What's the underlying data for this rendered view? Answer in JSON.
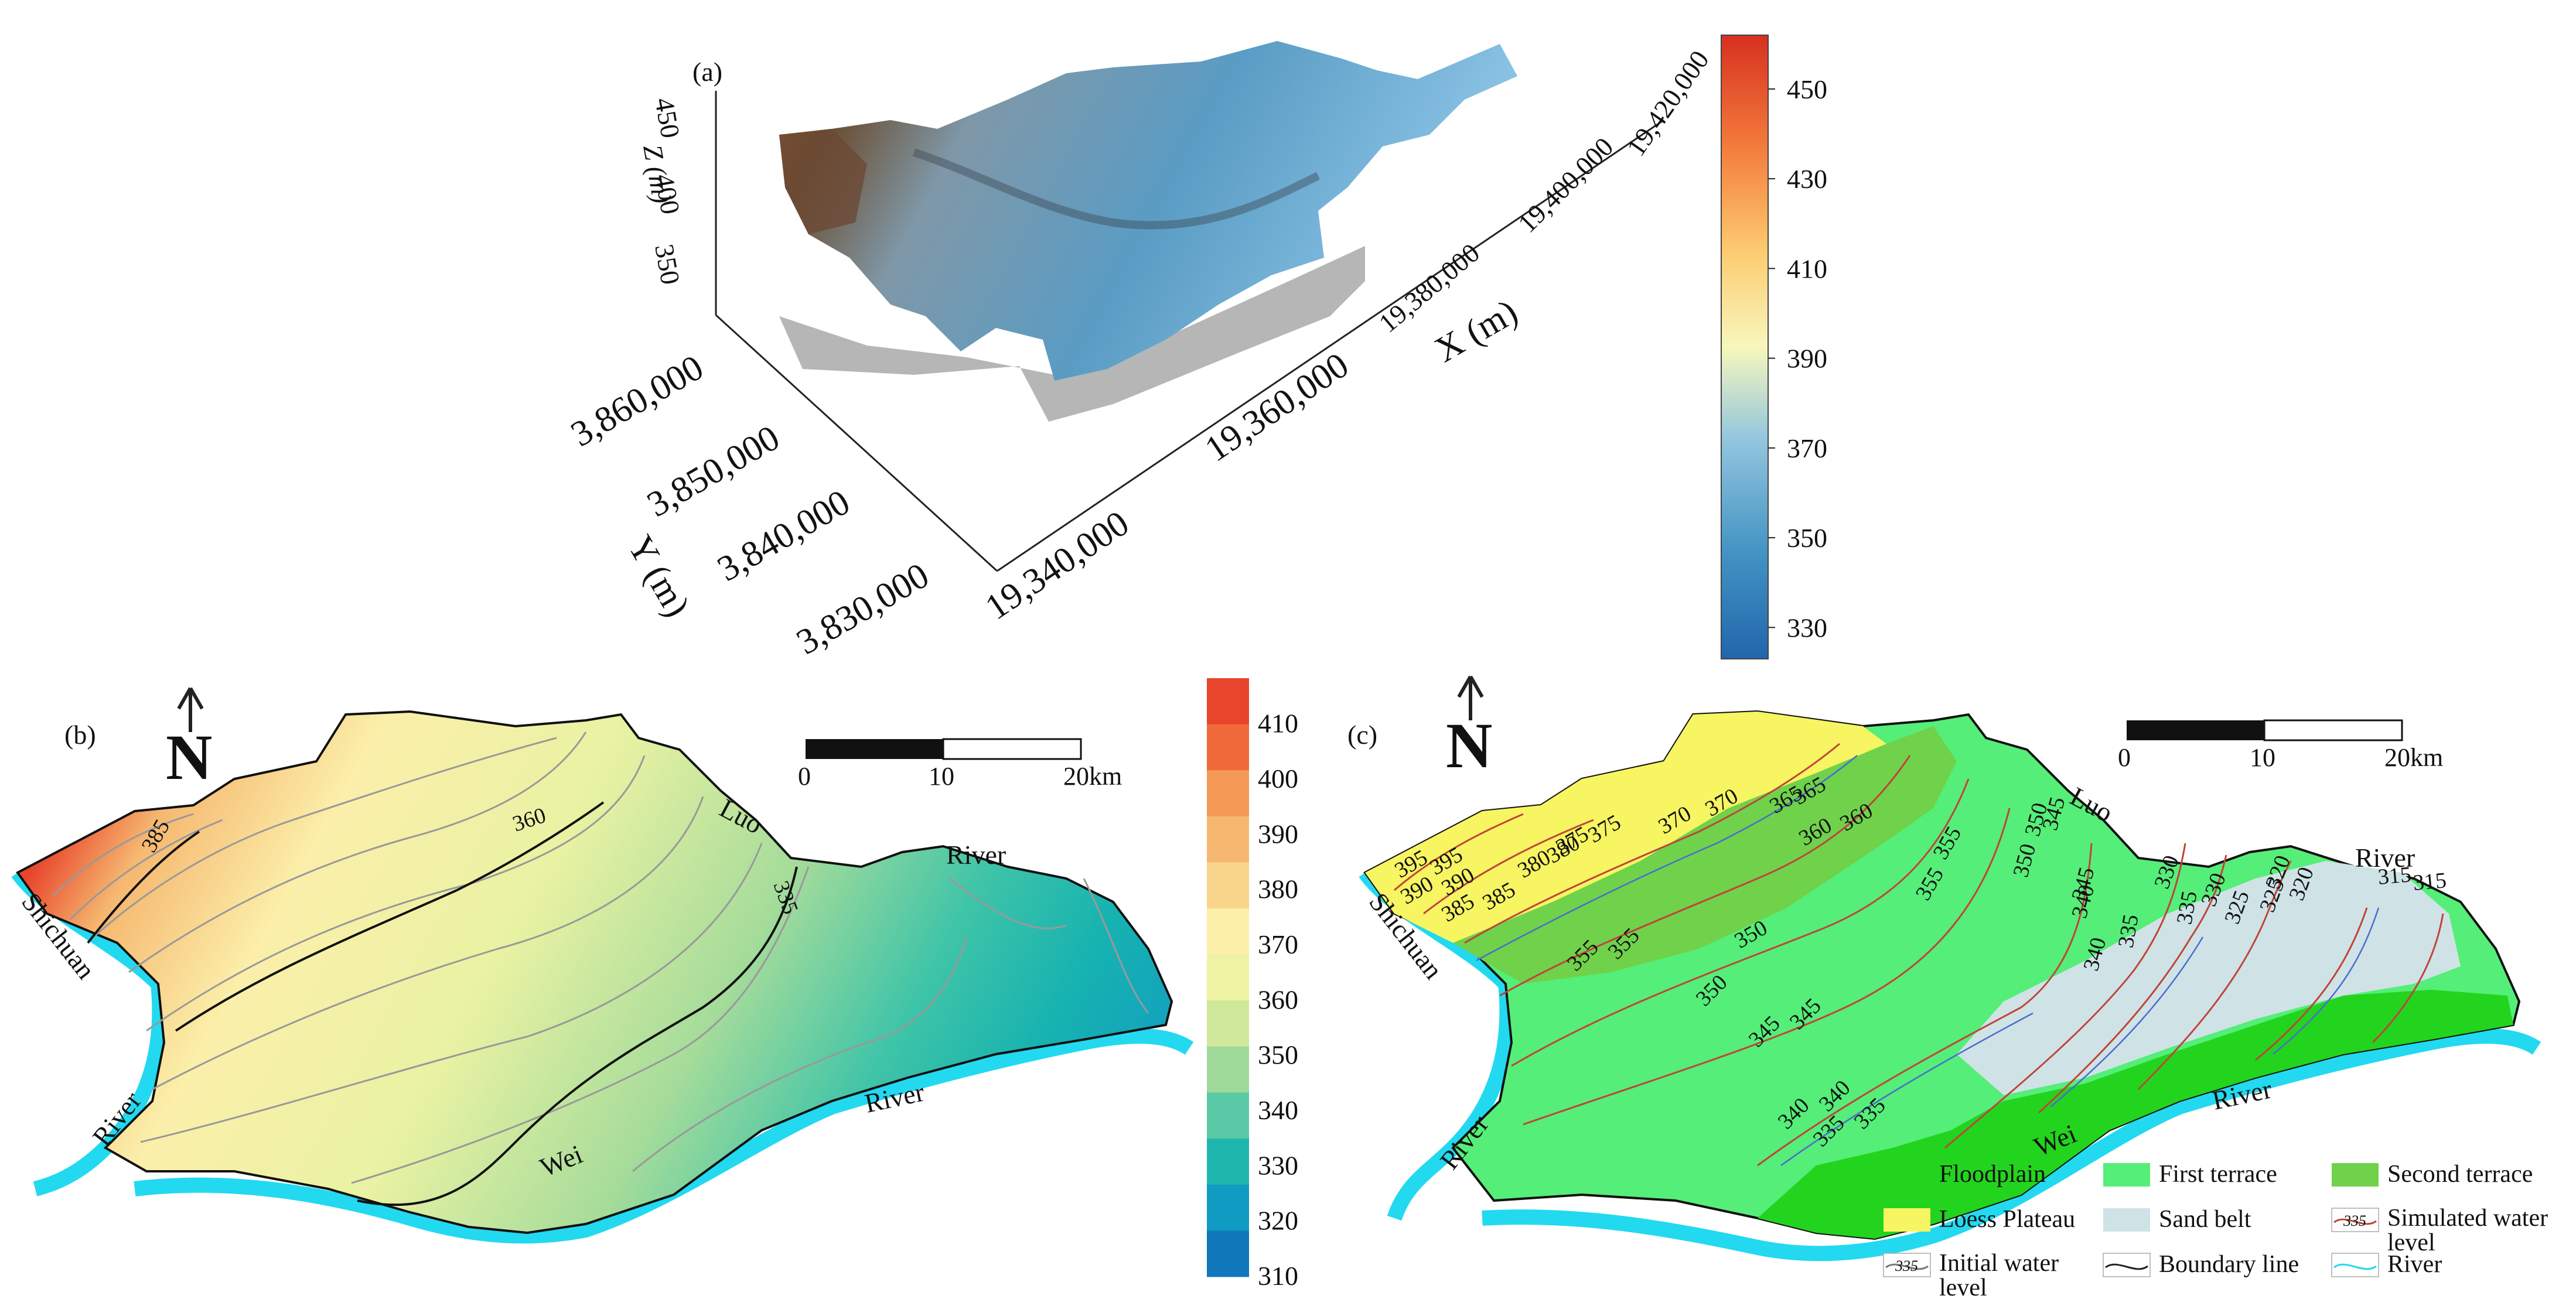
{
  "panel_a": {
    "letter": "(a)",
    "z_axis_title": "Z (m)",
    "z_ticks": [
      "450",
      "400",
      "350"
    ],
    "x_axis_title": "X (m)",
    "x_ticks": [
      "19,340,000",
      "19,360,000",
      "19,380,000",
      "19,400,000",
      "19,420,000"
    ],
    "y_axis_title": "Y (m)",
    "y_ticks": [
      "3,860,000",
      "3,850,000",
      "3,840,000",
      "3,830,000"
    ],
    "colorbar": {
      "ticks": [
        "450",
        "430",
        "410",
        "390",
        "370",
        "350",
        "330"
      ],
      "min": 323,
      "max": 462,
      "colors": [
        "#2166ac",
        "#4393c3",
        "#92c5de",
        "#f7f7bd",
        "#fdcc72",
        "#f47c3c",
        "#d7301f"
      ]
    }
  },
  "panel_b": {
    "letter": "(b)",
    "north": "N",
    "scale": {
      "labels": [
        "0",
        "10",
        "20km"
      ]
    },
    "rivers": {
      "shichuan": "Shichuan",
      "river_left": "River",
      "luo": "Luo",
      "river_ne": "River",
      "wei": "Wei",
      "river_se": "River"
    },
    "contour_labels": [
      "385",
      "360",
      "335"
    ],
    "colorbar": {
      "ticks": [
        "410",
        "400",
        "390",
        "380",
        "370",
        "360",
        "350",
        "340",
        "330",
        "320",
        "310"
      ],
      "band_colors": [
        "#e8452c",
        "#f06a3c",
        "#f49a56",
        "#f6b870",
        "#f9d58c",
        "#fbefaa",
        "#eef3a4",
        "#cfe89a",
        "#9fd99a",
        "#5ac9a6",
        "#1fb6ae",
        "#0f9bc2",
        "#1077bb"
      ]
    }
  },
  "panel_c": {
    "letter": "(c)",
    "north": "N",
    "scale": {
      "labels": [
        "0",
        "10",
        "20km"
      ]
    },
    "rivers": {
      "shichuan": "Shichuan",
      "river_left": "River",
      "luo": "Luo",
      "river_ne": "River",
      "wei": "Wei",
      "river_se": "River"
    },
    "contour_labels": [
      "395",
      "395",
      "390",
      "390",
      "385",
      "385",
      "380",
      "380",
      "375",
      "375",
      "370",
      "370",
      "365",
      "365",
      "360",
      "360",
      "355",
      "355",
      "350",
      "350",
      "345",
      "345",
      "340",
      "340",
      "335",
      "335",
      "330",
      "330",
      "325",
      "325",
      "320",
      "320",
      "315",
      "315",
      "355",
      "355",
      "350",
      "350",
      "345",
      "345",
      "340",
      "340",
      "335",
      "335"
    ],
    "legend": [
      {
        "label": "Floodplain",
        "color": "#22d41e",
        "kind": "fill"
      },
      {
        "label": "First terrace",
        "color": "#55ee78",
        "kind": "fill"
      },
      {
        "label": "Second terrace",
        "color": "#6fd24a",
        "kind": "fill"
      },
      {
        "label": "Loess Plateau",
        "color": "#f7f561",
        "kind": "fill"
      },
      {
        "label": "Sand belt",
        "color": "#cfe3e6",
        "kind": "fill"
      },
      {
        "label": "Simulated water level",
        "color": "#c0443a",
        "kind": "line",
        "sample": "335"
      },
      {
        "label": "Initial water level",
        "color": "#777777",
        "kind": "line",
        "sample": "335"
      },
      {
        "label": "Boundary line",
        "color": "#222222",
        "kind": "line"
      },
      {
        "label": "River",
        "color": "#22d9f0",
        "kind": "line"
      }
    ]
  }
}
